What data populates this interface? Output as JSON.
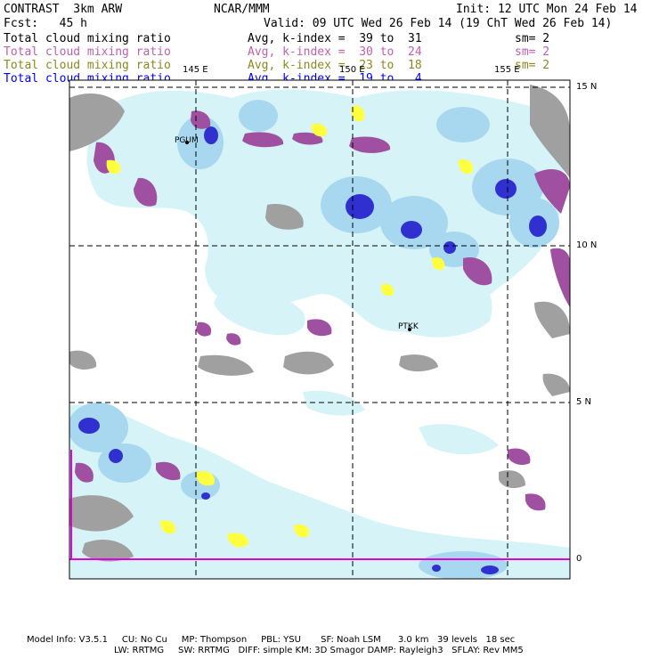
{
  "header": {
    "title": "CONTRAST  3km ARW",
    "center": "NCAR/MMM",
    "init": "Init: 12 UTC Mon 24 Feb 14",
    "fcst": "Fcst:   45 h",
    "valid": "Valid: 09 UTC Wed 26 Feb 14 (19 ChT Wed 26 Feb 14)"
  },
  "legend": [
    {
      "field": "Total cloud mixing ratio",
      "avg": "Avg, k-index =  39 to  31",
      "sm": "sm= 2",
      "color": "#000000"
    },
    {
      "field": "Total cloud mixing ratio",
      "avg": "Avg, k-index =  30 to  24",
      "sm": "sm= 2",
      "color": "#c060b0"
    },
    {
      "field": "Total cloud mixing ratio",
      "avg": "Avg, k-index =  23 to  18",
      "sm": "sm= 2",
      "color": "#8a8a20"
    },
    {
      "field": "Total cloud mixing ratio",
      "avg": "Avg, k-index =  19 to   4",
      "sm": "",
      "color": "#0000ff"
    }
  ],
  "map": {
    "lon_labels": [
      "145 E",
      "150 E",
      "155 E"
    ],
    "lat_labels": [
      "15 N",
      "10 N",
      "5 N",
      "0"
    ],
    "stations": [
      "PGUM",
      "PTKK"
    ],
    "colors": {
      "high_cloud": "#a0a0a0",
      "mid_cloud": "#a050a0",
      "low_cloud": "#ffff40",
      "light_blue": "#d6f4f8",
      "mid_blue": "#a8d8f0",
      "deep_blue": "#3030d0",
      "equator_line": "#e000e0"
    }
  },
  "footer": {
    "line1": "Model Info: V3.5.1     CU: No Cu     MP: Thompson     PBL: YSU       SF: Noah LSM      3.0 km   39 levels   18 sec",
    "line2": "LW: RRTMG     SW: RRTMG   DIFF: simple KM: 3D Smagor DAMP: Rayleigh3   SFLAY: Rev MM5"
  }
}
